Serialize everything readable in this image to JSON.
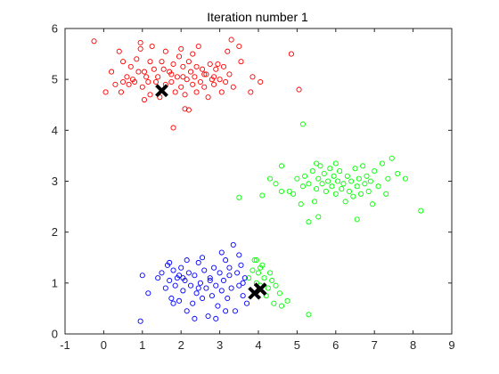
{
  "chart_data": {
    "type": "scatter",
    "title": "Iteration number 1",
    "xlabel": "",
    "ylabel": "",
    "xlim": [
      -1,
      9
    ],
    "ylim": [
      0,
      6
    ],
    "x_ticks": [
      -1,
      0,
      1,
      2,
      3,
      4,
      5,
      6,
      7,
      8,
      9
    ],
    "y_ticks": [
      0,
      1,
      2,
      3,
      4,
      5,
      6
    ],
    "x_tick_labels": [
      "-1",
      "0",
      "1",
      "2",
      "3",
      "4",
      "5",
      "6",
      "7",
      "8",
      "9"
    ],
    "y_tick_labels": [
      "0",
      "1",
      "2",
      "3",
      "4",
      "5",
      "6"
    ],
    "grid": false,
    "legend": "none",
    "marker": "open-circle",
    "series": [
      {
        "color": "#ff0000",
        "points": [
          [
            -0.25,
            5.75
          ],
          [
            0.05,
            4.75
          ],
          [
            0.2,
            5.15
          ],
          [
            0.3,
            4.9
          ],
          [
            0.4,
            5.55
          ],
          [
            0.45,
            4.75
          ],
          [
            0.5,
            4.95
          ],
          [
            0.5,
            5.35
          ],
          [
            0.6,
            5.05
          ],
          [
            0.65,
            4.9
          ],
          [
            0.7,
            5.25
          ],
          [
            0.8,
            4.95
          ],
          [
            0.85,
            5.4
          ],
          [
            0.9,
            5.15
          ],
          [
            0.95,
            5.6
          ],
          [
            0.95,
            5.72
          ],
          [
            1.0,
            4.85
          ],
          [
            1.05,
            4.6
          ],
          [
            1.05,
            5.15
          ],
          [
            1.1,
            5.05
          ],
          [
            1.15,
            4.95
          ],
          [
            1.2,
            5.35
          ],
          [
            1.2,
            4.7
          ],
          [
            1.3,
            5.2
          ],
          [
            1.35,
            4.95
          ],
          [
            1.4,
            5.05
          ],
          [
            1.45,
            4.65
          ],
          [
            1.5,
            5.35
          ],
          [
            1.55,
            5.2
          ],
          [
            1.6,
            4.9
          ],
          [
            1.7,
            5.15
          ],
          [
            1.75,
            4.95
          ],
          [
            1.8,
            5.3
          ],
          [
            1.8,
            4.05
          ],
          [
            1.85,
            4.75
          ],
          [
            1.9,
            5.05
          ],
          [
            1.95,
            5.45
          ],
          [
            2.0,
            4.85
          ],
          [
            2.0,
            5.6
          ],
          [
            2.05,
            5.25
          ],
          [
            2.1,
            4.7
          ],
          [
            2.1,
            4.42
          ],
          [
            2.15,
            5.0
          ],
          [
            2.2,
            4.4
          ],
          [
            2.2,
            5.35
          ],
          [
            2.25,
            5.15
          ],
          [
            2.3,
            4.9
          ],
          [
            2.3,
            5.5
          ],
          [
            2.35,
            5.05
          ],
          [
            2.4,
            4.75
          ],
          [
            2.4,
            5.25
          ],
          [
            2.45,
            5.65
          ],
          [
            2.5,
            4.95
          ],
          [
            2.55,
            5.2
          ],
          [
            2.6,
            4.85
          ],
          [
            2.65,
            5.1
          ],
          [
            2.7,
            4.65
          ],
          [
            2.75,
            5.3
          ],
          [
            2.8,
            5.0
          ],
          [
            2.85,
            4.9
          ],
          [
            2.9,
            5.2
          ],
          [
            2.95,
            5.3
          ],
          [
            3.0,
            5.0
          ],
          [
            3.05,
            4.75
          ],
          [
            3.1,
            5.25
          ],
          [
            3.15,
            4.95
          ],
          [
            3.2,
            5.55
          ],
          [
            3.25,
            5.1
          ],
          [
            3.3,
            5.78
          ],
          [
            3.35,
            4.85
          ],
          [
            3.5,
            5.65
          ],
          [
            3.55,
            5.35
          ],
          [
            3.8,
            4.75
          ],
          [
            3.85,
            5.05
          ],
          [
            4.05,
            4.95
          ],
          [
            4.85,
            5.5
          ],
          [
            5.05,
            4.8
          ],
          [
            1.75,
            5.1
          ],
          [
            2.6,
            5.1
          ],
          [
            1.25,
            5.65
          ],
          [
            0.75,
            5.0
          ],
          [
            2.05,
            5.05
          ],
          [
            2.85,
            5.05
          ],
          [
            1.6,
            5.55
          ]
        ]
      },
      {
        "color": "#00ff00",
        "points": [
          [
            3.5,
            2.68
          ],
          [
            4.1,
            2.72
          ],
          [
            4.3,
            3.05
          ],
          [
            4.45,
            2.95
          ],
          [
            4.6,
            3.3
          ],
          [
            4.6,
            2.8
          ],
          [
            4.8,
            2.8
          ],
          [
            4.9,
            2.75
          ],
          [
            5.0,
            3.05
          ],
          [
            5.1,
            2.55
          ],
          [
            5.15,
            2.9
          ],
          [
            5.2,
            3.1
          ],
          [
            5.15,
            4.12
          ],
          [
            5.3,
            2.2
          ],
          [
            5.3,
            2.95
          ],
          [
            5.4,
            3.2
          ],
          [
            5.45,
            2.6
          ],
          [
            5.5,
            2.85
          ],
          [
            5.55,
            2.3
          ],
          [
            5.55,
            3.05
          ],
          [
            5.6,
            3.3
          ],
          [
            5.65,
            2.95
          ],
          [
            5.7,
            3.15
          ],
          [
            5.75,
            2.8
          ],
          [
            5.8,
            3.0
          ],
          [
            5.85,
            3.25
          ],
          [
            5.9,
            2.9
          ],
          [
            5.95,
            3.1
          ],
          [
            6.0,
            2.75
          ],
          [
            6.05,
            3.0
          ],
          [
            6.1,
            3.2
          ],
          [
            6.15,
            2.85
          ],
          [
            6.2,
            2.95
          ],
          [
            6.25,
            2.6
          ],
          [
            6.3,
            3.1
          ],
          [
            6.35,
            2.8
          ],
          [
            6.4,
            3.0
          ],
          [
            6.45,
            2.7
          ],
          [
            6.5,
            3.25
          ],
          [
            6.55,
            2.9
          ],
          [
            6.6,
            3.05
          ],
          [
            6.65,
            2.75
          ],
          [
            6.7,
            3.3
          ],
          [
            6.75,
            2.95
          ],
          [
            6.8,
            3.1
          ],
          [
            6.85,
            2.8
          ],
          [
            6.9,
            3.0
          ],
          [
            6.95,
            2.55
          ],
          [
            7.0,
            3.2
          ],
          [
            7.1,
            2.9
          ],
          [
            7.2,
            3.35
          ],
          [
            7.3,
            2.75
          ],
          [
            7.35,
            3.05
          ],
          [
            7.45,
            3.45
          ],
          [
            7.6,
            3.15
          ],
          [
            7.8,
            3.05
          ],
          [
            8.2,
            2.42
          ],
          [
            6.55,
            2.25
          ],
          [
            6.0,
            3.35
          ],
          [
            5.5,
            3.35
          ],
          [
            3.75,
            1.1
          ],
          [
            3.85,
            1.25
          ],
          [
            3.9,
            1.45
          ],
          [
            3.95,
            1.0
          ],
          [
            4.0,
            1.2
          ],
          [
            4.05,
            0.95
          ],
          [
            4.1,
            1.35
          ],
          [
            4.15,
            1.1
          ],
          [
            4.2,
            0.75
          ],
          [
            4.25,
            0.9
          ],
          [
            4.3,
            1.2
          ],
          [
            4.35,
            1.05
          ],
          [
            4.4,
            0.6
          ],
          [
            4.45,
            0.95
          ],
          [
            4.55,
            0.8
          ],
          [
            4.6,
            0.55
          ],
          [
            4.75,
            0.65
          ],
          [
            5.3,
            0.38
          ],
          [
            3.95,
            1.45
          ],
          [
            4.05,
            1.3
          ]
        ]
      },
      {
        "color": "#0000ff",
        "points": [
          [
            0.95,
            0.25
          ],
          [
            1.0,
            1.15
          ],
          [
            1.15,
            0.8
          ],
          [
            1.4,
            1.1
          ],
          [
            1.5,
            1.2
          ],
          [
            1.6,
            0.9
          ],
          [
            1.65,
            1.35
          ],
          [
            1.7,
            1.05
          ],
          [
            1.75,
            0.7
          ],
          [
            1.8,
            1.25
          ],
          [
            1.85,
            0.95
          ],
          [
            1.9,
            1.1
          ],
          [
            1.95,
            0.65
          ],
          [
            2.0,
            1.3
          ],
          [
            2.05,
            0.85
          ],
          [
            2.1,
            1.05
          ],
          [
            2.15,
            0.45
          ],
          [
            2.2,
            1.2
          ],
          [
            2.25,
            0.95
          ],
          [
            2.3,
            0.6
          ],
          [
            2.35,
            1.15
          ],
          [
            2.4,
            0.8
          ],
          [
            2.45,
            1.4
          ],
          [
            2.5,
            1.0
          ],
          [
            2.55,
            0.7
          ],
          [
            2.6,
            1.25
          ],
          [
            2.65,
            0.9
          ],
          [
            2.7,
            0.35
          ],
          [
            2.75,
            1.1
          ],
          [
            2.8,
            0.75
          ],
          [
            2.85,
            1.3
          ],
          [
            2.9,
            0.95
          ],
          [
            2.95,
            0.55
          ],
          [
            3.0,
            1.2
          ],
          [
            3.05,
            0.85
          ],
          [
            3.1,
            1.05
          ],
          [
            3.15,
            1.45
          ],
          [
            3.2,
            0.7
          ],
          [
            3.25,
            1.15
          ],
          [
            3.3,
            0.9
          ],
          [
            3.35,
            1.75
          ],
          [
            3.4,
            0.45
          ],
          [
            3.45,
            1.2
          ],
          [
            3.5,
            0.95
          ],
          [
            3.55,
            1.35
          ],
          [
            3.6,
            0.75
          ],
          [
            3.65,
            1.1
          ],
          [
            3.7,
            0.6
          ],
          [
            2.15,
            1.45
          ],
          [
            1.7,
            1.4
          ],
          [
            2.55,
            1.5
          ],
          [
            3.05,
            1.6
          ],
          [
            2.35,
            0.3
          ],
          [
            2.9,
            0.3
          ],
          [
            1.8,
            0.6
          ],
          [
            3.5,
            1.55
          ],
          [
            2.05,
            1.1
          ],
          [
            2.75,
            1.05
          ],
          [
            3.25,
            1.3
          ],
          [
            2.45,
            0.9
          ],
          [
            1.95,
            1.15
          ],
          [
            3.15,
            0.45
          ],
          [
            3.6,
            1.0
          ]
        ]
      }
    ],
    "centroids": {
      "marker": "x",
      "color": "#000000",
      "points": [
        [
          1.5,
          4.78
        ],
        [
          3.9,
          0.8
        ],
        [
          4.05,
          0.88
        ]
      ]
    }
  }
}
